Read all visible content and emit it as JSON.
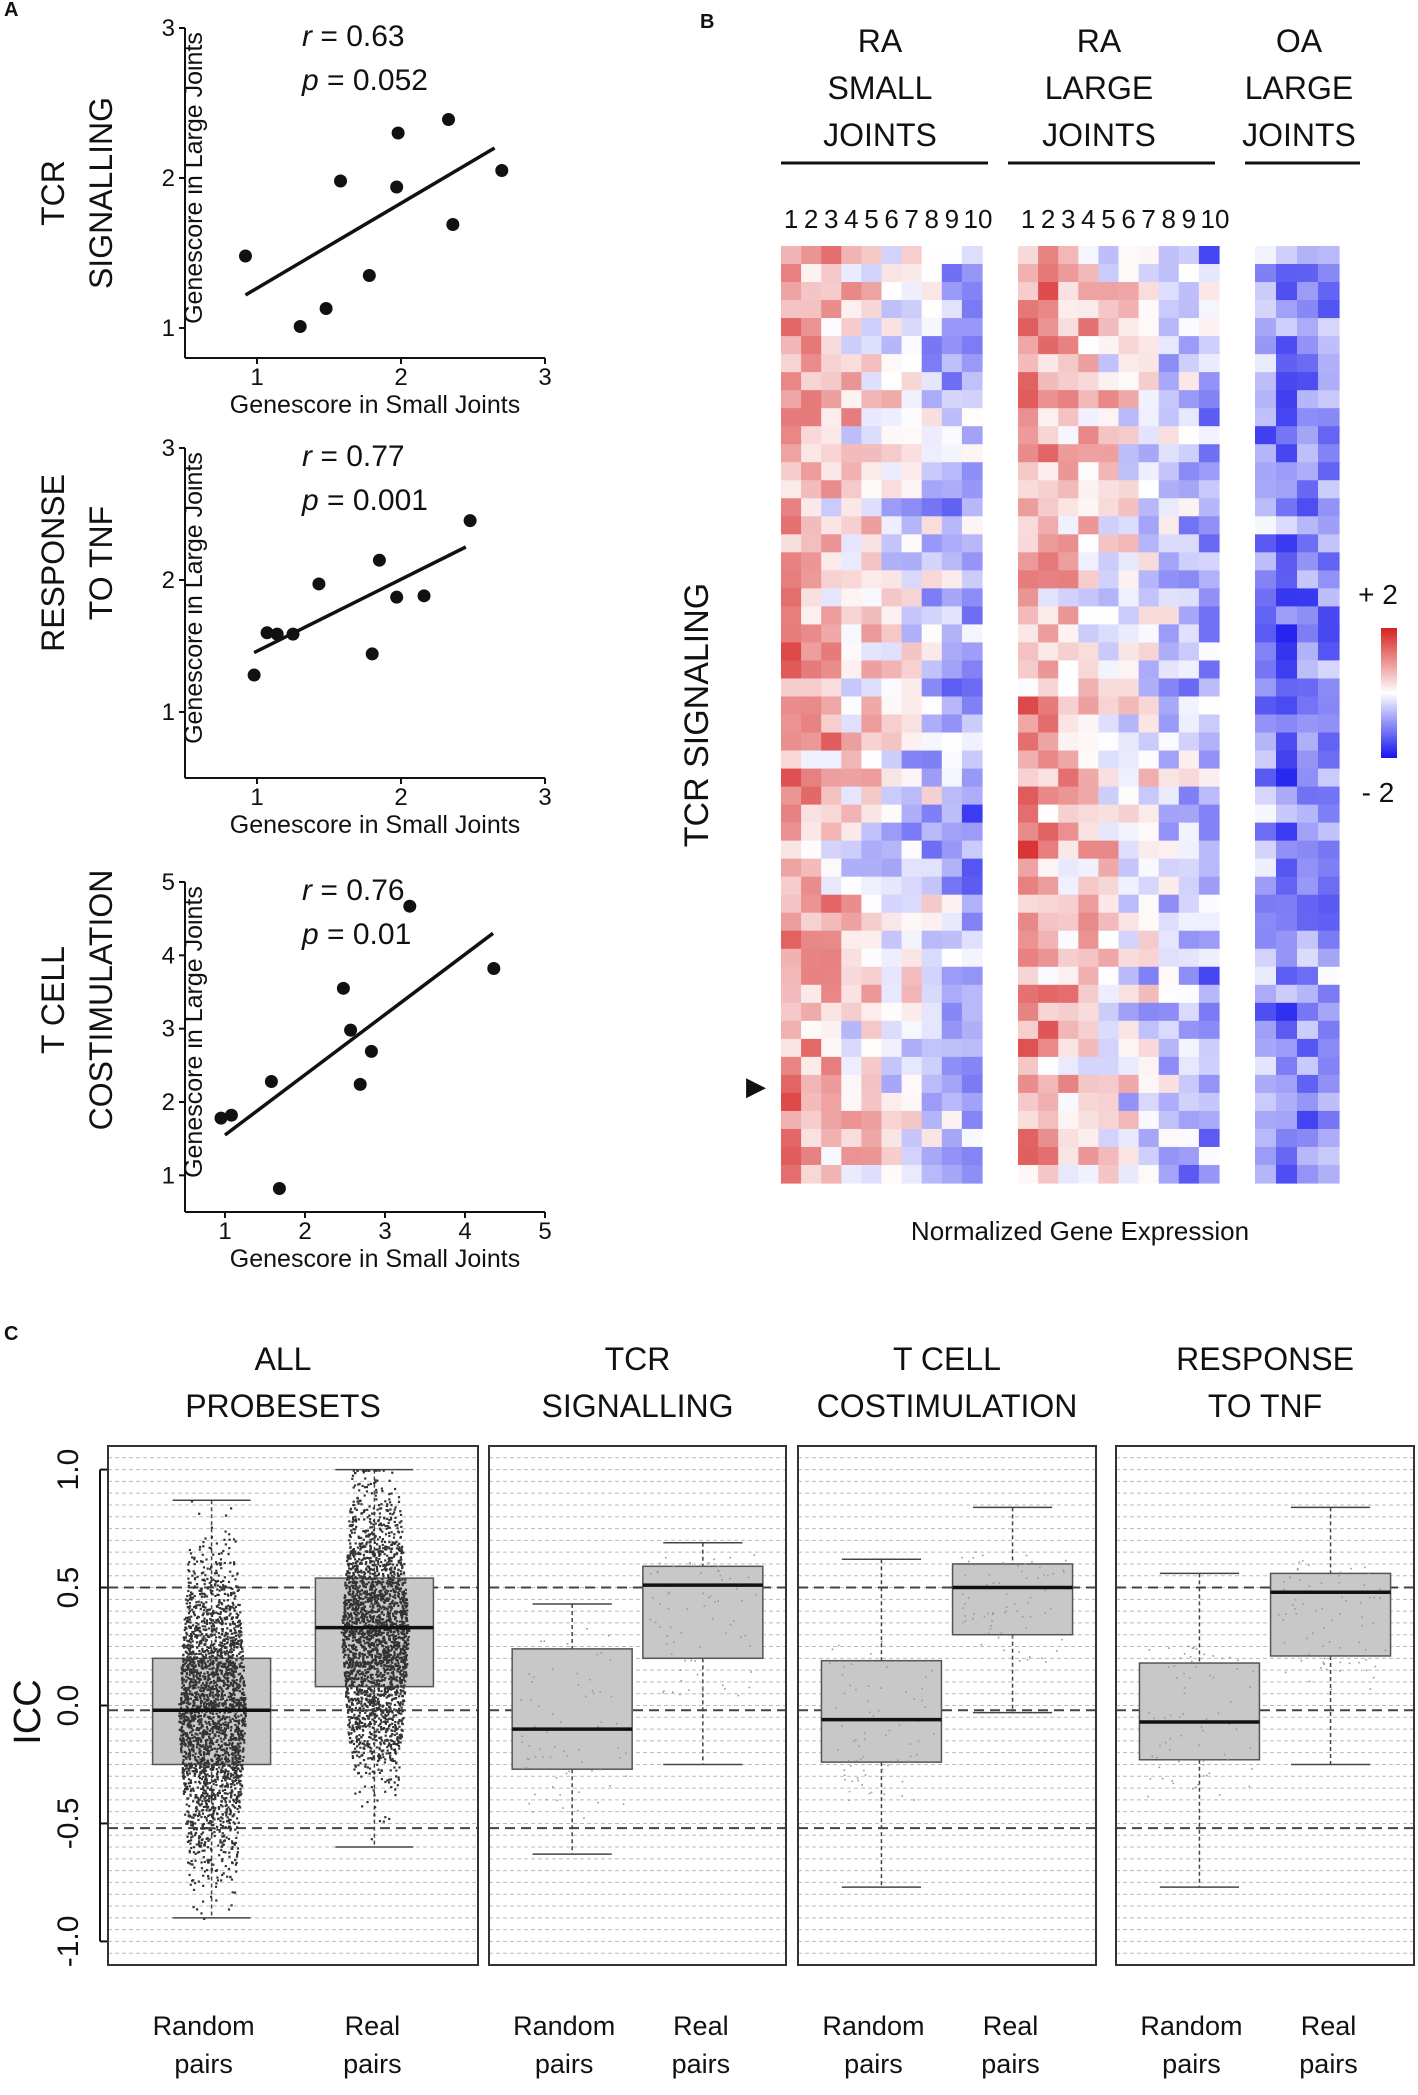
{
  "panel_labels": {
    "a": "A",
    "b": "B",
    "c": "C"
  },
  "colors": {
    "high": "#d62020",
    "low": "#1414ee",
    "mid": "#ffffff",
    "box_fill": "#c8c8c8",
    "dots": "#333333",
    "grid": "#bbbbbb"
  },
  "chart_data": [
    {
      "type": "scatter",
      "id": "scatter-tcr",
      "row_title": [
        "TCR",
        "SIGNALLING"
      ],
      "stat_r": "= 0.63",
      "stat_p": "= 0.052",
      "r_label": "r",
      "p_label": "p",
      "xlabel": "Genescore  in Small Joints",
      "ylabel": "Genescore  in Large Joints",
      "xlim": [
        0.5,
        3
      ],
      "ylim": [
        0.8,
        3
      ],
      "xticks": [
        1,
        2,
        3
      ],
      "yticks": [
        1,
        2,
        3
      ],
      "points": [
        [
          0.92,
          1.48
        ],
        [
          1.3,
          1.01
        ],
        [
          1.48,
          1.13
        ],
        [
          1.58,
          1.98
        ],
        [
          1.78,
          1.35
        ],
        [
          1.97,
          1.94
        ],
        [
          1.98,
          2.3
        ],
        [
          2.33,
          2.39
        ],
        [
          2.36,
          1.69
        ],
        [
          2.7,
          2.05
        ]
      ],
      "fit": [
        [
          0.92,
          1.22
        ],
        [
          2.65,
          2.2
        ]
      ]
    },
    {
      "type": "scatter",
      "id": "scatter-tnf",
      "row_title": [
        "RESPONSE",
        "TO TNF"
      ],
      "stat_r": "= 0.77",
      "stat_p": "= 0.001",
      "r_label": "r",
      "p_label": "p",
      "xlabel": "Genescore  in Small Joints",
      "ylabel": "Genescore  in Large Joints",
      "xlim": [
        0.5,
        3
      ],
      "ylim": [
        0.5,
        3
      ],
      "xticks": [
        1,
        2,
        3
      ],
      "yticks": [
        1,
        2,
        3
      ],
      "points": [
        [
          0.98,
          1.28
        ],
        [
          1.07,
          1.6
        ],
        [
          1.14,
          1.59
        ],
        [
          1.25,
          1.59
        ],
        [
          1.43,
          1.97
        ],
        [
          1.8,
          1.44
        ],
        [
          1.85,
          2.15
        ],
        [
          1.97,
          1.87
        ],
        [
          2.16,
          1.88
        ],
        [
          2.48,
          2.45
        ]
      ],
      "fit": [
        [
          0.98,
          1.45
        ],
        [
          2.45,
          2.25
        ]
      ]
    },
    {
      "type": "scatter",
      "id": "scatter-costim",
      "row_title": [
        "T CELL",
        "COSTIMULATION"
      ],
      "stat_r": "= 0.76",
      "stat_p": "= 0.01",
      "r_label": "r",
      "p_label": "p",
      "xlabel": "Genescore  in Small Joints",
      "ylabel": "Genescore  in Large Joints",
      "xlim": [
        0.5,
        5
      ],
      "ylim": [
        0.5,
        5
      ],
      "xticks": [
        1,
        2,
        3,
        4,
        5
      ],
      "yticks": [
        1,
        2,
        3,
        4,
        5
      ],
      "points": [
        [
          0.95,
          1.78
        ],
        [
          1.08,
          1.82
        ],
        [
          1.58,
          2.28
        ],
        [
          1.68,
          0.82
        ],
        [
          2.48,
          3.55
        ],
        [
          2.57,
          2.98
        ],
        [
          2.69,
          2.24
        ],
        [
          2.83,
          2.69
        ],
        [
          3.31,
          4.67
        ],
        [
          4.36,
          3.82
        ]
      ],
      "fit": [
        [
          1.0,
          1.55
        ],
        [
          4.35,
          4.3
        ]
      ]
    },
    {
      "type": "heatmap",
      "id": "heatmap-tcr",
      "row_label": "TCR SIGNALING",
      "groups": [
        {
          "label": [
            "RA",
            "SMALL",
            "JOINTS"
          ],
          "columns": [
            "1",
            "2",
            "3",
            "4",
            "5",
            "6",
            "7",
            "8",
            "9",
            "10"
          ]
        },
        {
          "label": [
            "RA",
            "LARGE",
            "JOINTS"
          ],
          "columns": [
            "1",
            "2",
            "3",
            "4",
            "5",
            "6",
            "7",
            "8",
            "9",
            "10"
          ]
        },
        {
          "label": [
            "OA",
            "LARGE",
            "JOINTS"
          ],
          "columns": [
            "",
            "",
            "",
            ""
          ]
        }
      ],
      "n_rows": 52,
      "legend_high": "+ 2",
      "legend_low": "- 2",
      "xlabel": "Normalized Gene Expression",
      "marker": "▶",
      "range": [
        -2,
        2
      ]
    },
    {
      "type": "box",
      "id": "box-icc",
      "ylabel": "ICC",
      "ylim": [
        -1.1,
        1.1
      ],
      "yticks": [
        "-1.0",
        "-0.5",
        "0.0",
        "0.5",
        "1.0"
      ],
      "ytick_values": [
        -1.0,
        -0.5,
        0.0,
        0.5,
        1.0
      ],
      "dashed_lines": [
        -0.52,
        -0.02,
        0.5
      ],
      "categories": [
        "Random pairs",
        "Real pairs"
      ],
      "category_lines": [
        [
          "Random",
          "pairs"
        ],
        [
          "Real",
          "pairs"
        ]
      ],
      "panels": [
        {
          "title": [
            "ALL",
            "PROBESETS"
          ],
          "dense": true,
          "boxes": [
            {
              "min": -0.9,
              "q1": -0.25,
              "median": -0.02,
              "q3": 0.2,
              "max": 0.87
            },
            {
              "min": -0.6,
              "q1": 0.08,
              "median": 0.33,
              "q3": 0.54,
              "max": 1.0
            }
          ]
        },
        {
          "title": [
            "TCR",
            "SIGNALLING"
          ],
          "dense": false,
          "boxes": [
            {
              "min": -0.63,
              "q1": -0.27,
              "median": -0.1,
              "q3": 0.24,
              "max": 0.43
            },
            {
              "min": -0.25,
              "q1": 0.2,
              "median": 0.51,
              "q3": 0.59,
              "max": 0.69
            }
          ]
        },
        {
          "title": [
            "T CELL",
            "COSTIMULATION"
          ],
          "dense": false,
          "boxes": [
            {
              "min": -0.77,
              "q1": -0.24,
              "median": -0.06,
              "q3": 0.19,
              "max": 0.62
            },
            {
              "min": -0.03,
              "q1": 0.3,
              "median": 0.5,
              "q3": 0.6,
              "max": 0.84
            }
          ]
        },
        {
          "title": [
            "RESPONSE",
            "TO TNF"
          ],
          "dense": false,
          "boxes": [
            {
              "min": -0.77,
              "q1": -0.23,
              "median": -0.07,
              "q3": 0.18,
              "max": 0.56
            },
            {
              "min": -0.25,
              "q1": 0.21,
              "median": 0.48,
              "q3": 0.56,
              "max": 0.84
            }
          ]
        }
      ]
    }
  ]
}
